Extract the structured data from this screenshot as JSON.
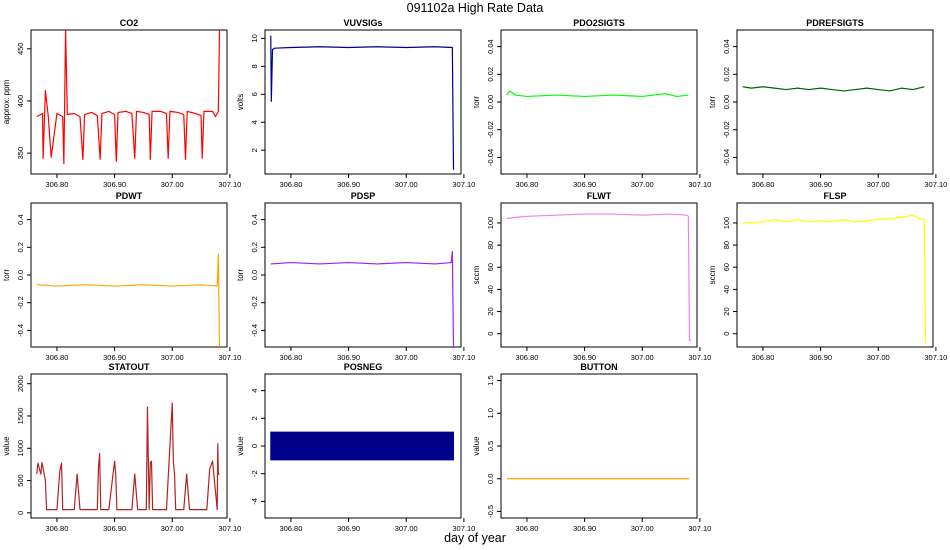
{
  "title": "091102a   High Rate Data",
  "xlabel": "day of year",
  "chart_data": [
    {
      "type": "line",
      "title": "CO2",
      "ylabel": "approx. ppm",
      "color": "#ff0000",
      "xticks": [
        "306.80",
        "306.90",
        "307.00",
        "307.10"
      ],
      "yticks": [
        "350",
        "400",
        "450"
      ],
      "xlim": [
        306.755,
        307.095
      ],
      "ylim": [
        330,
        468
      ],
      "series": [
        {
          "x": [
            306.765,
            306.775,
            306.776,
            306.78,
            306.785,
            306.79,
            306.8,
            306.81,
            306.812,
            306.815,
            306.818,
            306.83,
            306.84,
            306.845,
            306.848,
            306.86,
            306.87,
            306.875,
            306.878,
            306.89,
            306.9,
            306.903,
            306.906,
            306.92,
            306.93,
            306.935,
            306.938,
            306.95,
            306.96,
            306.962,
            306.965,
            306.98,
            306.99,
            306.993,
            306.996,
            307.01,
            307.02,
            307.023,
            307.026,
            307.04,
            307.05,
            307.052,
            307.055,
            307.07,
            307.075,
            307.08,
            307.082
          ],
          "y": [
            385,
            388,
            345,
            410,
            385,
            346,
            388,
            385,
            340,
            468,
            387,
            388,
            385,
            344,
            387,
            389,
            386,
            344,
            388,
            390,
            387,
            342,
            389,
            390,
            388,
            345,
            390,
            389,
            387,
            344,
            390,
            390,
            388,
            345,
            390,
            389,
            387,
            344,
            390,
            388,
            386,
            345,
            390,
            390,
            385,
            390,
            468
          ]
        }
      ]
    },
    {
      "type": "line",
      "title": "VUVSIGs",
      "ylabel": "volts",
      "color": "#00008b",
      "xticks": [
        "306.80",
        "306.90",
        "307.00",
        "307.10"
      ],
      "yticks": [
        "2",
        "4",
        "6",
        "8",
        "10"
      ],
      "xlim": [
        306.755,
        307.095
      ],
      "ylim": [
        0.3,
        10.6
      ],
      "series": [
        {
          "x": [
            306.765,
            306.766,
            306.768,
            306.772,
            306.8,
            306.85,
            306.9,
            306.95,
            307.0,
            307.05,
            307.08,
            307.082
          ],
          "y": [
            10.2,
            5.5,
            9.2,
            9.3,
            9.35,
            9.4,
            9.35,
            9.4,
            9.35,
            9.4,
            9.35,
            0.6
          ]
        }
      ]
    },
    {
      "type": "line",
      "title": "PDO2SIGTS",
      "ylabel": "torr",
      "color": "#00ff00",
      "xticks": [
        "306.80",
        "306.90",
        "307.00",
        "307.10"
      ],
      "yticks": [
        "-0.04",
        "-0.02",
        "0.00",
        "0.02",
        "0.04"
      ],
      "xlim": [
        306.755,
        307.095
      ],
      "ylim": [
        -0.052,
        0.052
      ],
      "series": [
        {
          "x": [
            306.765,
            306.77,
            306.78,
            306.8,
            306.85,
            306.9,
            306.95,
            307.0,
            307.02,
            307.04,
            307.06,
            307.08
          ],
          "y": [
            0.005,
            0.008,
            0.005,
            0.004,
            0.005,
            0.004,
            0.005,
            0.004,
            0.005,
            0.006,
            0.004,
            0.005
          ]
        }
      ]
    },
    {
      "type": "line",
      "title": "PDREFSIGTS",
      "ylabel": "torr",
      "color": "#006400",
      "xticks": [
        "306.80",
        "306.90",
        "307.00",
        "307.10"
      ],
      "yticks": [
        "-0.04",
        "-0.02",
        "0.00",
        "0.02",
        "0.04"
      ],
      "xlim": [
        306.755,
        307.095
      ],
      "ylim": [
        -0.052,
        0.052
      ],
      "series": [
        {
          "x": [
            306.765,
            306.78,
            306.8,
            306.82,
            306.84,
            306.86,
            306.88,
            306.9,
            306.92,
            306.94,
            306.96,
            306.98,
            307.0,
            307.02,
            307.04,
            307.06,
            307.08
          ],
          "y": [
            0.011,
            0.01,
            0.011,
            0.01,
            0.009,
            0.01,
            0.009,
            0.01,
            0.009,
            0.008,
            0.009,
            0.01,
            0.009,
            0.008,
            0.01,
            0.009,
            0.011
          ]
        }
      ]
    },
    {
      "type": "line",
      "title": "PDWT",
      "ylabel": "torr",
      "color": "#ffa500",
      "xticks": [
        "306.80",
        "306.90",
        "307.00",
        "307.10"
      ],
      "yticks": [
        "-0.4",
        "-0.2",
        "0.0",
        "0.2",
        "0.4"
      ],
      "xlim": [
        306.755,
        307.095
      ],
      "ylim": [
        -0.52,
        0.52
      ],
      "series": [
        {
          "x": [
            306.765,
            306.8,
            306.85,
            306.9,
            306.95,
            307.0,
            307.05,
            307.078,
            307.08,
            307.082
          ],
          "y": [
            -0.07,
            -0.08,
            -0.07,
            -0.08,
            -0.07,
            -0.08,
            -0.07,
            -0.08,
            0.15,
            -0.52
          ]
        }
      ]
    },
    {
      "type": "line",
      "title": "PDSP",
      "ylabel": "torr",
      "color": "#a020f0",
      "xticks": [
        "306.80",
        "306.90",
        "307.00",
        "307.10"
      ],
      "yticks": [
        "-0.4",
        "-0.2",
        "0.0",
        "0.2",
        "0.4"
      ],
      "xlim": [
        306.755,
        307.095
      ],
      "ylim": [
        -0.52,
        0.52
      ],
      "series": [
        {
          "x": [
            306.765,
            306.8,
            306.85,
            306.9,
            306.95,
            307.0,
            307.05,
            307.078,
            307.08,
            307.082
          ],
          "y": [
            0.08,
            0.09,
            0.08,
            0.09,
            0.08,
            0.09,
            0.08,
            0.09,
            0.17,
            -0.52
          ]
        }
      ]
    },
    {
      "type": "line",
      "title": "FLWT",
      "ylabel": "sccm",
      "color": "#ee82ee",
      "xticks": [
        "306.80",
        "306.90",
        "307.00",
        "307.10"
      ],
      "yticks": [
        "0",
        "20",
        "40",
        "60",
        "80",
        "100"
      ],
      "xlim": [
        306.755,
        307.095
      ],
      "ylim": [
        -12,
        118
      ],
      "series": [
        {
          "x": [
            306.765,
            306.78,
            306.8,
            306.85,
            306.9,
            306.95,
            307.0,
            307.05,
            307.078,
            307.08,
            307.082,
            307.085
          ],
          "y": [
            104,
            105,
            106,
            107,
            108,
            108,
            107,
            108,
            107,
            106,
            -6,
            -6
          ]
        }
      ]
    },
    {
      "type": "line",
      "title": "FLSP",
      "ylabel": "sccm",
      "color": "#ffff00",
      "xticks": [
        "306.80",
        "306.90",
        "307.00",
        "307.10"
      ],
      "yticks": [
        "0",
        "20",
        "40",
        "60",
        "80",
        "100"
      ],
      "xlim": [
        306.755,
        307.095
      ],
      "ylim": [
        -12,
        118
      ],
      "series": [
        {
          "x": [
            306.765,
            306.8,
            306.82,
            306.84,
            306.86,
            306.88,
            306.9,
            306.92,
            306.94,
            306.96,
            306.98,
            307.0,
            307.02,
            307.04,
            307.06,
            307.07,
            307.08,
            307.082,
            307.085
          ],
          "y": [
            100,
            101,
            103,
            101,
            103,
            101,
            102,
            101,
            103,
            101,
            102,
            103,
            104,
            105,
            107,
            104,
            103,
            -8,
            -8
          ]
        }
      ]
    },
    {
      "type": "line",
      "title": "STATOUT",
      "ylabel": "value",
      "color": "#b22222",
      "xticks": [
        "306.80",
        "306.90",
        "307.00",
        "307.10"
      ],
      "yticks": [
        "0",
        "500",
        "1000",
        "1500",
        "2000"
      ],
      "xlim": [
        306.755,
        307.095
      ],
      "ylim": [
        -80,
        2150
      ],
      "series": [
        {
          "x": [
            306.765,
            306.767,
            306.772,
            306.774,
            306.78,
            306.782,
            306.8,
            306.805,
            306.808,
            306.81,
            306.83,
            306.835,
            306.84,
            306.86,
            306.87,
            306.872,
            306.874,
            306.876,
            306.89,
            306.9,
            306.902,
            306.904,
            306.93,
            306.935,
            306.94,
            306.955,
            306.957,
            306.96,
            306.962,
            306.964,
            306.966,
            306.98,
            306.99,
            307.0,
            307.002,
            307.004,
            307.006,
            307.02,
            307.025,
            307.03,
            307.05,
            307.06,
            307.065,
            307.07,
            307.078,
            307.079,
            307.08,
            307.082
          ],
          "y": [
            600,
            770,
            600,
            780,
            500,
            50,
            50,
            650,
            770,
            50,
            50,
            600,
            50,
            50,
            50,
            700,
            920,
            50,
            50,
            800,
            600,
            50,
            50,
            600,
            50,
            50,
            1640,
            50,
            780,
            800,
            50,
            50,
            50,
            1700,
            780,
            600,
            50,
            50,
            600,
            50,
            50,
            50,
            680,
            800,
            50,
            1070,
            600,
            600
          ]
        }
      ]
    },
    {
      "type": "area",
      "title": "POSNEG",
      "ylabel": "value",
      "color": "#00008b",
      "xticks": [
        "306.80",
        "306.90",
        "307.00",
        "307.10"
      ],
      "yticks": [
        "-4",
        "-2",
        "0",
        "2",
        "4"
      ],
      "xlim": [
        306.755,
        307.095
      ],
      "ylim": [
        -5.2,
        5.2
      ],
      "series": [
        {
          "x": [
            306.765,
            307.082
          ],
          "y_high": [
            1,
            1
          ],
          "y_low": [
            -1,
            -1
          ]
        }
      ]
    },
    {
      "type": "line",
      "title": "BUTTON",
      "ylabel": "value",
      "color": "#ffa500",
      "xticks": [
        "306.80",
        "306.90",
        "307.00",
        "307.10"
      ],
      "yticks": [
        "-0.5",
        "0.0",
        "0.5",
        "1.0",
        "1.5"
      ],
      "xlim": [
        306.755,
        307.095
      ],
      "ylim": [
        -0.6,
        1.6
      ],
      "series": [
        {
          "x": [
            306.765,
            307.082
          ],
          "y": [
            0,
            0
          ]
        }
      ]
    }
  ]
}
